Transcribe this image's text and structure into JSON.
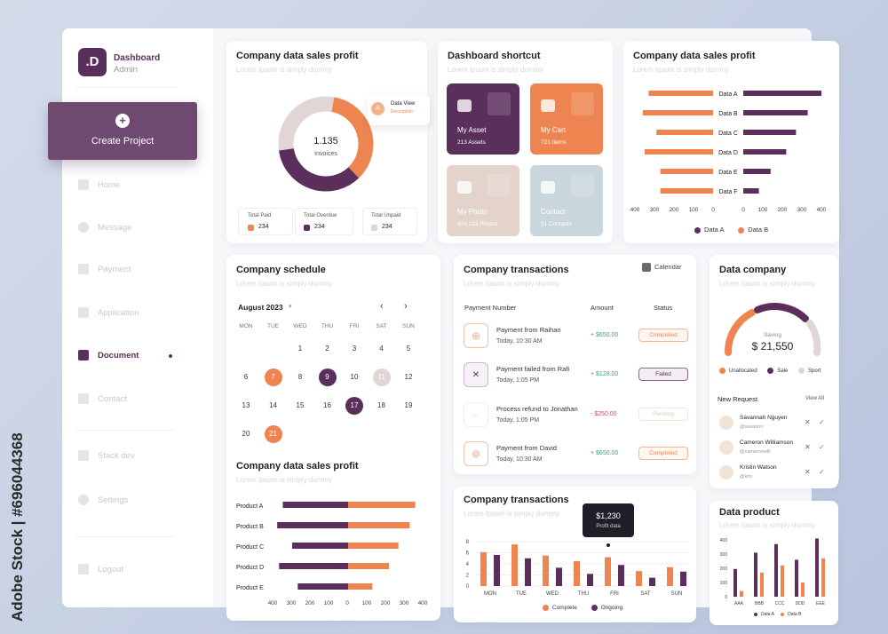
{
  "brand": {
    "logo_letter": ".D",
    "title": "Dashboard",
    "subtitle": "Admin"
  },
  "sidebar": {
    "create_label": "Create Project",
    "items": [
      {
        "label": "Home"
      },
      {
        "label": "Message"
      },
      {
        "label": "Payment"
      },
      {
        "label": "Application"
      },
      {
        "label": "Document"
      },
      {
        "label": "Contact"
      },
      {
        "label": "Stack dev"
      },
      {
        "label": "Settings"
      },
      {
        "label": "Logout"
      }
    ]
  },
  "donut_card": {
    "title": "Company data sales profit",
    "subtitle": "Lorem Ipsum is simply dummy",
    "center_value": "1.135",
    "center_label": "Invoices",
    "tooltip_badge": "A",
    "tooltip_title": "Data View",
    "tooltip_sub": "Description",
    "stats": [
      {
        "label": "Total Paid",
        "value": "234",
        "color": "#ee8551"
      },
      {
        "label": "Total Overdue",
        "value": "234",
        "color": "#5a2f5c"
      },
      {
        "label": "Total Unpaid",
        "value": "234",
        "color": "#e2d5d6"
      }
    ]
  },
  "shortcut": {
    "title": "Dashboard shortcut",
    "subtitle": "Lorem Ipsum is simply dummy",
    "tiles": [
      {
        "name": "My Asset",
        "detail": "213 Assets",
        "color": "#5a2f5c",
        "icon": "lock-icon"
      },
      {
        "name": "My Cart",
        "detail": "721 Items",
        "color": "#ee8551",
        "icon": "cart-icon"
      },
      {
        "name": "My Photo",
        "detail": "924,213 Photos",
        "color": "#e4d3cb",
        "icon": "image-icon"
      },
      {
        "name": "Contact",
        "detail": "51 Contacts",
        "color": "#c9d6dd",
        "icon": "users-icon"
      }
    ]
  },
  "butterfly_card": {
    "title": "Company data sales profit",
    "subtitle": "Lorem Ipsum is simply dummy",
    "legend": [
      {
        "label": "Data A",
        "color": "#5a2f5c"
      },
      {
        "label": "Data B",
        "color": "#ee8551"
      }
    ]
  },
  "schedule": {
    "title": "Company schedule",
    "subtitle": "Lorem Ipsum is simply dummy",
    "month": "August 2023",
    "dow": [
      "MON",
      "TUE",
      "WED",
      "THU",
      "FRI",
      "SAT",
      "SUN"
    ],
    "weeks": [
      [
        "",
        "",
        "1",
        "2",
        "3",
        "4",
        "5"
      ],
      [
        "6",
        "7",
        "8",
        "9",
        "10",
        "11",
        "12"
      ],
      [
        "13",
        "14",
        "15",
        "16",
        "17",
        "18",
        "19"
      ],
      [
        "20",
        "21",
        "",
        "",
        "",
        "",
        ""
      ]
    ],
    "highlights": {
      "7": "#ee8551",
      "9": "#5a2f5c",
      "11": "#e2d5d6",
      "17": "#5a2f5c",
      "21": "#ee8551"
    }
  },
  "product_card": {
    "title": "Company data sales profit",
    "subtitle": "Lorem Ipsum is simply dummy"
  },
  "transactions": {
    "title": "Company transactions",
    "subtitle": "Lorem Ipsum is simply dummy",
    "calendar_label": "Calendar",
    "headers": [
      "Payment Number",
      "Amount",
      "Status"
    ],
    "rows": [
      {
        "name": "Payment from Raihan",
        "time": "Today, 10:30 AM",
        "amount": "+ $650.00",
        "status": "Completed",
        "icon": "check-icon"
      },
      {
        "name": "Payment failed from Rafi",
        "time": "Today, 1:05 PM",
        "amount": "+ $128.00",
        "status": "Failed",
        "icon": "close-icon"
      },
      {
        "name": "Process refund to Jonathan",
        "time": "Today, 1:05 PM",
        "amount": "- $250.00",
        "status": "Pending",
        "icon": "arrow-left-icon"
      },
      {
        "name": "Payment from David",
        "time": "Today, 10:30 AM",
        "amount": "+ $650.00",
        "status": "Completed",
        "icon": "check-icon"
      }
    ]
  },
  "tx_chart_card": {
    "title": "Company transactions",
    "subtitle": "Lorem Ipsum is simply dummy",
    "tooltip_value": "$1,230",
    "tooltip_label": "Profit data",
    "legend": [
      {
        "label": "Complete",
        "color": "#ee8551"
      },
      {
        "label": "Ongoing",
        "color": "#5a2f5c"
      }
    ]
  },
  "data_company": {
    "title": "Data company",
    "subtitle": "Lorem Ipsum is simply dummy",
    "gauge_label": "Saving",
    "gauge_value": "$ 21,550",
    "legend": [
      {
        "label": "Unallocated",
        "color": "#ee8551"
      },
      {
        "label": "Sale",
        "color": "#5a2f5c"
      },
      {
        "label": "Sport",
        "color": "#e2d5d6"
      }
    ],
    "request_title": "New Request",
    "view_all": "View All",
    "requests": [
      {
        "name": "Savannah Nguyen",
        "handle": "@savannn"
      },
      {
        "name": "Cameron Williamson",
        "handle": "@cameronwill"
      },
      {
        "name": "Kristin Watson",
        "handle": "@kris"
      }
    ]
  },
  "data_product": {
    "title": "Data product",
    "subtitle": "Lorem Ipsum is simply dummy",
    "legend": [
      {
        "label": "Data A",
        "color": "#5a2f5c"
      },
      {
        "label": "Data B",
        "color": "#ee8551"
      }
    ]
  },
  "watermark": {
    "vertical": "Adobe Stock | #696044368"
  },
  "chart_data": [
    {
      "type": "pie",
      "id": "invoices-donut",
      "categories": [
        "Total Paid",
        "Total Overdue",
        "Total Unpaid"
      ],
      "values": [
        35,
        35,
        30
      ],
      "colors": [
        "#ee8551",
        "#5a2f5c",
        "#e2d5d6"
      ]
    },
    {
      "type": "bar",
      "id": "butterfly",
      "categories": [
        "Data A",
        "Data B",
        "Data C",
        "Data D",
        "Data E",
        "Data F"
      ],
      "series": [
        {
          "name": "Data A",
          "values": [
            400,
            330,
            270,
            220,
            140,
            80
          ]
        },
        {
          "name": "Data B",
          "values": [
            330,
            360,
            290,
            350,
            270,
            270
          ]
        }
      ],
      "left_ticks": [
        "400",
        "300",
        "200",
        "100",
        "0"
      ],
      "right_ticks": [
        "0",
        "100",
        "200",
        "300",
        "400"
      ],
      "xlim": [
        0,
        400
      ]
    },
    {
      "type": "bar",
      "id": "products",
      "categories": [
        "Product A",
        "Product B",
        "Product C",
        "Product D",
        "Product E"
      ],
      "series": [
        {
          "name": "left",
          "values": [
            350,
            380,
            300,
            370,
            270
          ]
        },
        {
          "name": "right",
          "values": [
            360,
            330,
            270,
            220,
            130
          ]
        }
      ],
      "left_ticks": [
        "400",
        "300",
        "200",
        "100",
        "0"
      ],
      "right_ticks": [
        "100",
        "200",
        "300",
        "400"
      ],
      "xlim": [
        0,
        400
      ]
    },
    {
      "type": "bar",
      "id": "weekly",
      "categories": [
        "MON",
        "TUE",
        "WED",
        "THU",
        "FRI",
        "SAT",
        "SUN"
      ],
      "series": [
        {
          "name": "Complete",
          "values": [
            6.1,
            7.5,
            5.5,
            4.5,
            5.2,
            2.7,
            3.4
          ]
        },
        {
          "name": "Ongoing",
          "values": [
            5.6,
            5.0,
            3.3,
            2.2,
            3.8,
            1.5,
            2.6
          ]
        }
      ],
      "y_ticks": [
        "0",
        "2",
        "4",
        "6",
        "8"
      ],
      "ylim": [
        0,
        8
      ]
    },
    {
      "type": "bar",
      "id": "data-product",
      "categories": [
        "AAA",
        "BBB",
        "CCC",
        "DDD",
        "EEE"
      ],
      "series": [
        {
          "name": "Data A",
          "values": [
            195,
            310,
            370,
            260,
            410
          ]
        },
        {
          "name": "Data B",
          "values": [
            40,
            170,
            220,
            100,
            270
          ]
        }
      ],
      "y_ticks": [
        "0",
        "100",
        "200",
        "300",
        "400"
      ],
      "ylim": [
        0,
        400
      ]
    }
  ]
}
